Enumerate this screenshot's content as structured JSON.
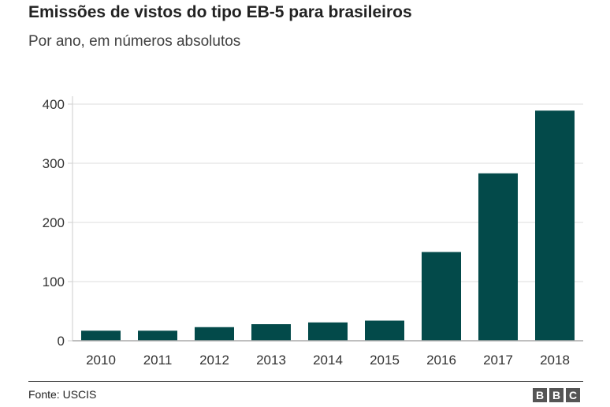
{
  "chart_data": {
    "type": "bar",
    "title": "Emissões de vistos do tipo EB-5 para brasileiros",
    "subtitle": "Por ano, em números absolutos",
    "categories": [
      "2010",
      "2011",
      "2012",
      "2013",
      "2014",
      "2015",
      "2016",
      "2017",
      "2018"
    ],
    "values": [
      17,
      17,
      23,
      28,
      31,
      34,
      150,
      283,
      389
    ],
    "ylim": [
      0,
      400
    ],
    "yticks": [
      0,
      100,
      200,
      300,
      400
    ],
    "grid": true,
    "bar_color": "#034a4a",
    "xlabel": "",
    "ylabel": ""
  },
  "source": "Fonte: USCIS",
  "logo": "BBC"
}
